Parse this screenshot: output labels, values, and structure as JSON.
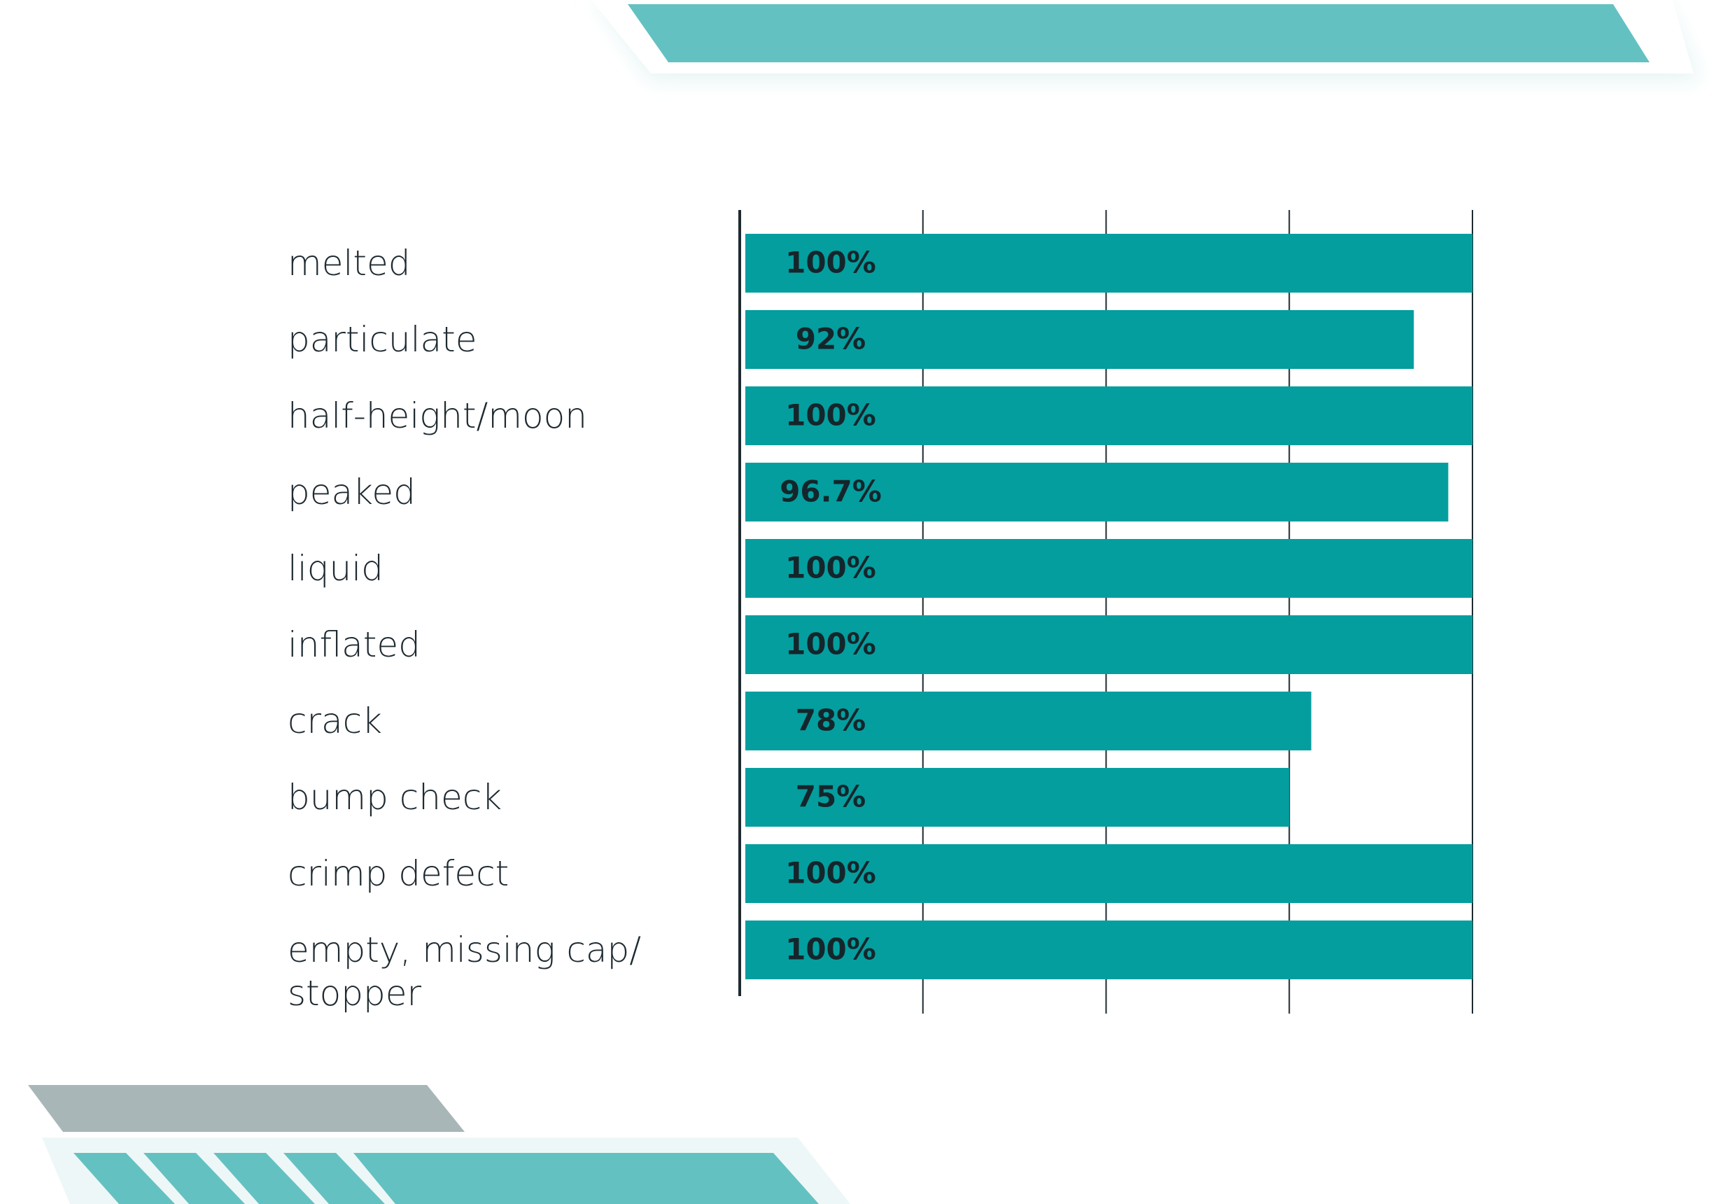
{
  "chart_data": {
    "type": "bar",
    "orientation": "horizontal",
    "categories": [
      "melted",
      "particulate",
      "half-height/moon",
      "peaked",
      "liquid",
      "inflated",
      "crack",
      "bump check",
      "crimp defect",
      "empty, missing cap/ stopper"
    ],
    "values": [
      100,
      92,
      100,
      96.7,
      100,
      100,
      78,
      75,
      100,
      100
    ],
    "value_labels": [
      "100%",
      "92%",
      "100%",
      "96.7%",
      "100%",
      "100%",
      "78%",
      "75%",
      "100%",
      "100%"
    ],
    "color": "#049e9f",
    "xlim": [
      0,
      100
    ],
    "xticks": [
      25,
      50,
      75,
      100
    ],
    "grid": true
  }
}
